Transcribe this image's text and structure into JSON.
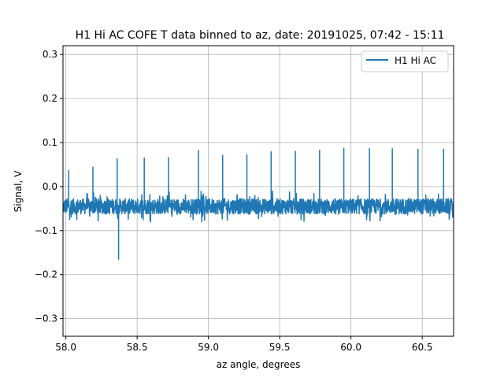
{
  "chart_data": {
    "type": "line",
    "title": "H1 Hi AC COFE T data binned to az, date: 20191025, 07:42 - 15:11",
    "xlabel": "az angle, degrees",
    "ylabel": "Signal, V",
    "xlim": [
      57.98,
      60.72
    ],
    "ylim": [
      -0.34,
      0.32
    ],
    "x_ticks": [
      58.0,
      58.5,
      59.0,
      59.5,
      60.0,
      60.5
    ],
    "x_tick_labels": [
      "58.0",
      "58.5",
      "59.0",
      "59.5",
      "60.0",
      "60.5"
    ],
    "y_ticks": [
      -0.3,
      -0.2,
      -0.1,
      0.0,
      0.1,
      0.2,
      0.3
    ],
    "y_tick_labels": [
      "−0.3",
      "−0.2",
      "−0.1",
      "0.0",
      "0.1",
      "0.2",
      "0.3"
    ],
    "grid": true,
    "legend_position": "top-right",
    "series": [
      {
        "name": "H1 Hi AC",
        "color": "#1f77b4",
        "baseline": -0.045,
        "noise_band": [
          -0.08,
          -0.01
        ],
        "spikes": [
          {
            "x": 58.02,
            "y": 0.037
          },
          {
            "x": 58.19,
            "y": 0.044
          },
          {
            "x": 58.36,
            "y": 0.063
          },
          {
            "x": 58.37,
            "y": -0.165
          },
          {
            "x": 58.55,
            "y": 0.065
          },
          {
            "x": 58.72,
            "y": 0.066
          },
          {
            "x": 58.93,
            "y": 0.082
          },
          {
            "x": 59.1,
            "y": 0.071
          },
          {
            "x": 59.27,
            "y": 0.072
          },
          {
            "x": 59.44,
            "y": 0.079
          },
          {
            "x": 59.61,
            "y": 0.08
          },
          {
            "x": 59.78,
            "y": 0.082
          },
          {
            "x": 59.95,
            "y": 0.087
          },
          {
            "x": 60.13,
            "y": 0.086
          },
          {
            "x": 60.29,
            "y": 0.086
          },
          {
            "x": 60.47,
            "y": 0.085
          },
          {
            "x": 60.65,
            "y": 0.085
          }
        ]
      }
    ]
  }
}
